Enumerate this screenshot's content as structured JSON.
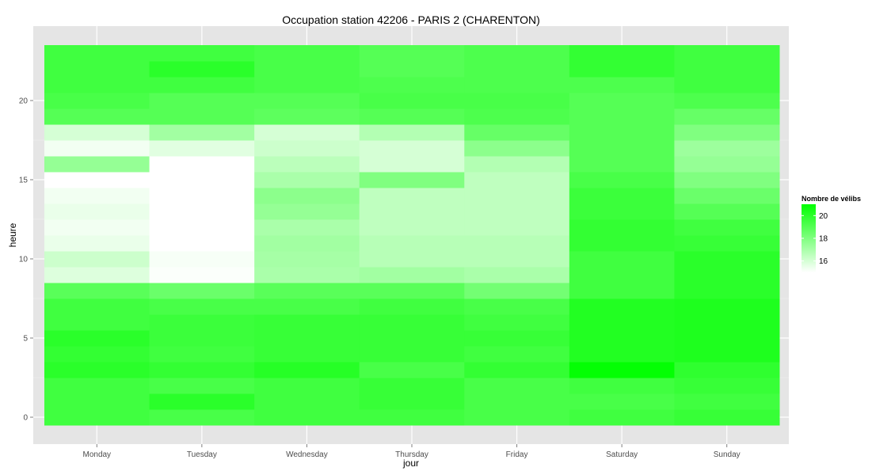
{
  "chart_data": {
    "type": "heatmap",
    "title": "Occupation station 42206 - PARIS 2 (CHARENTON)",
    "xlabel": "jour",
    "ylabel": "heure",
    "categories": [
      "Monday",
      "Tuesday",
      "Wednesday",
      "Thursday",
      "Friday",
      "Saturday",
      "Sunday"
    ],
    "y_ticks": [
      0,
      5,
      10,
      15,
      20
    ],
    "ylim": [
      -0.5,
      23.5
    ],
    "grid": true,
    "legend": {
      "title": "Nombre de vélibs",
      "placement": "right",
      "ticks": [
        16,
        18,
        20
      ],
      "range": [
        15,
        21
      ],
      "low_color": "#ffffff",
      "high_color": "#00ff00"
    },
    "panel_background": "#e5e5e5",
    "values": [
      [
        19.5,
        19.3,
        19.5,
        19.5,
        19.3,
        19.5,
        19.7
      ],
      [
        19.5,
        20.0,
        19.5,
        19.7,
        19.3,
        19.3,
        19.5
      ],
      [
        19.5,
        19.3,
        19.5,
        19.7,
        19.3,
        19.5,
        19.7
      ],
      [
        20.0,
        19.8,
        20.1,
        19.3,
        19.8,
        20.9,
        19.9
      ],
      [
        19.8,
        19.5,
        19.7,
        19.7,
        19.5,
        20.2,
        20.3
      ],
      [
        20.0,
        19.6,
        19.7,
        19.7,
        19.7,
        20.2,
        20.3
      ],
      [
        19.5,
        19.6,
        19.7,
        19.7,
        19.5,
        20.2,
        20.3
      ],
      [
        19.5,
        19.3,
        19.3,
        19.5,
        19.3,
        20.2,
        20.3
      ],
      [
        18.9,
        18.5,
        18.9,
        18.9,
        18.3,
        19.5,
        20.0
      ],
      [
        15.8,
        15.1,
        17.0,
        17.2,
        17.0,
        19.5,
        20.0
      ],
      [
        16.2,
        15.2,
        17.1,
        16.7,
        16.7,
        19.5,
        20.0
      ],
      [
        15.5,
        15.0,
        17.2,
        16.7,
        16.7,
        19.8,
        19.7
      ],
      [
        15.3,
        15.0,
        17.0,
        16.5,
        16.5,
        19.8,
        19.5
      ],
      [
        15.5,
        15.0,
        17.5,
        16.5,
        16.5,
        19.6,
        19.0
      ],
      [
        15.3,
        15.0,
        17.7,
        16.5,
        16.5,
        19.6,
        18.5
      ],
      [
        15.0,
        15.0,
        17.0,
        18.0,
        16.5,
        19.3,
        18.0
      ],
      [
        17.5,
        15.0,
        16.6,
        16.0,
        16.8,
        19.0,
        17.5
      ],
      [
        15.3,
        15.7,
        16.2,
        16.0,
        17.7,
        19.0,
        17.3
      ],
      [
        16.0,
        17.2,
        16.0,
        16.8,
        18.6,
        19.0,
        18.0
      ],
      [
        19.0,
        19.0,
        18.8,
        19.0,
        19.2,
        19.0,
        18.6
      ],
      [
        19.3,
        19.0,
        19.0,
        19.3,
        19.3,
        19.0,
        19.2
      ],
      [
        19.5,
        19.5,
        19.3,
        19.2,
        19.2,
        19.2,
        19.5
      ],
      [
        19.5,
        20.0,
        19.3,
        19.0,
        19.2,
        19.8,
        19.5
      ],
      [
        19.5,
        19.5,
        19.3,
        19.0,
        19.2,
        19.8,
        19.5
      ]
    ]
  }
}
